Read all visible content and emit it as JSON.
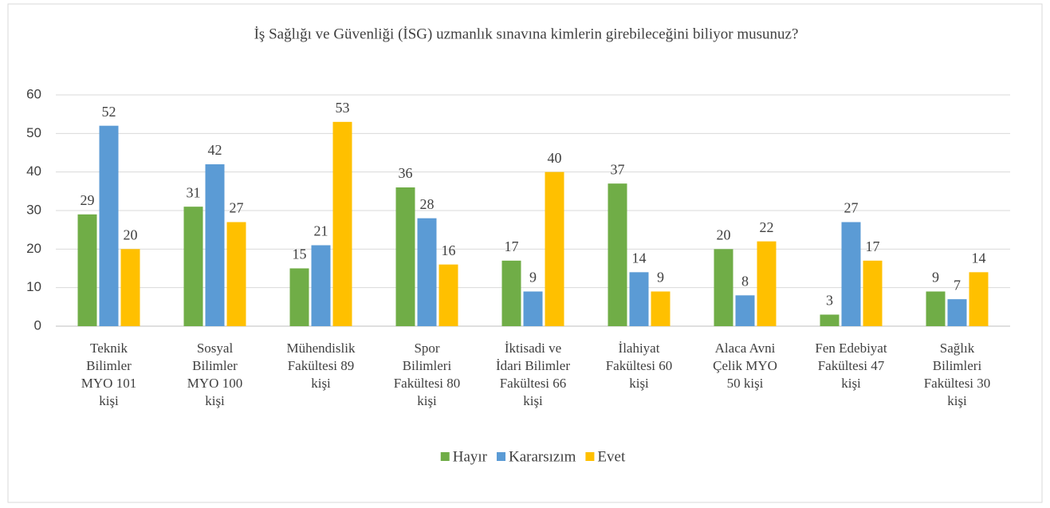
{
  "chart_data": {
    "type": "bar",
    "title": "İş Sağlığı ve Güvenliği (İSG) uzmanlık sınavına kimlerin girebileceğini biliyor musunuz?",
    "categories": [
      [
        "Teknik",
        "Bilimler",
        "MYO 101",
        "kişi"
      ],
      [
        "Sosyal",
        "Bilimler",
        "MYO 100",
        "kişi"
      ],
      [
        "Mühendislik",
        "Fakültesi 89",
        "kişi"
      ],
      [
        "Spor",
        "Bilimleri",
        "Fakültesi 80",
        "kişi"
      ],
      [
        "İktisadi ve",
        "İdari Bilimler",
        "Fakültesi 66",
        "kişi"
      ],
      [
        "İlahiyat",
        "Fakültesi 60",
        "kişi"
      ],
      [
        "Alaca Avni",
        "Çelik MYO",
        "50 kişi"
      ],
      [
        "Fen Edebiyat",
        "Fakültesi 47",
        "kişi"
      ],
      [
        "Sağlık",
        "Bilimleri",
        "Fakültesi 30",
        "kişi"
      ]
    ],
    "series": [
      {
        "name": "Hayır",
        "color": "#70ad47",
        "values": [
          29,
          31,
          15,
          36,
          17,
          37,
          20,
          3,
          9
        ]
      },
      {
        "name": "Kararsızım",
        "color": "#5b9bd5",
        "values": [
          52,
          42,
          21,
          28,
          9,
          14,
          8,
          27,
          7
        ]
      },
      {
        "name": "Evet",
        "color": "#ffc000",
        "values": [
          20,
          27,
          53,
          16,
          40,
          9,
          22,
          17,
          14
        ]
      }
    ],
    "ylim": [
      0,
      60
    ],
    "yticks": [
      0,
      10,
      20,
      30,
      40,
      50,
      60
    ],
    "grid": true,
    "legend": "bottom"
  }
}
